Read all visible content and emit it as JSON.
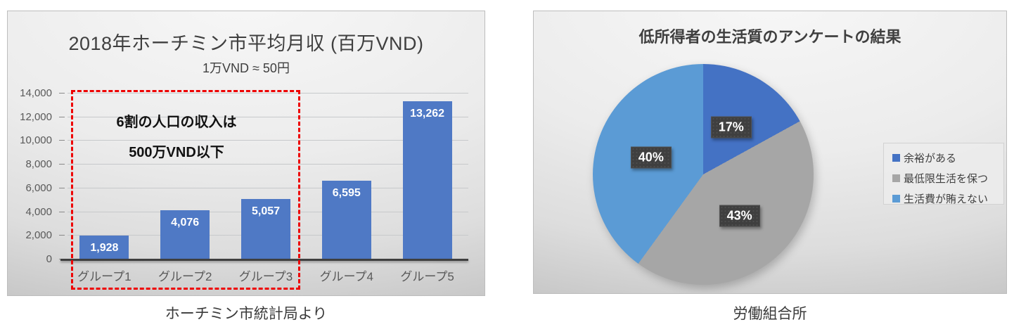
{
  "page": {
    "background": "#ffffff"
  },
  "chart_data": [
    {
      "type": "bar",
      "title": "2018年ホーチミン市平均月収 (百万VND)",
      "subtitle": "1万VND ≈ 50円",
      "categories": [
        "グループ1",
        "グループ2",
        "グループ3",
        "グループ4",
        "グループ5"
      ],
      "values": [
        1928,
        4076,
        5057,
        6595,
        13262
      ],
      "value_labels": [
        "1,928",
        "4,076",
        "5,057",
        "6,595",
        "13,262"
      ],
      "ylim": [
        0,
        14000
      ],
      "ytick_interval": 2000,
      "ytick_labels": [
        "0",
        "2,000",
        "4,000",
        "6,000",
        "8,000",
        "10,000",
        "12,000",
        "14,000"
      ],
      "grid": true,
      "legend": false,
      "bar_color": "#4f79c5",
      "annotation": {
        "line1": "6割の人口の収入は",
        "line2": "500万VND以下",
        "box_color": "#ee0000",
        "box_covers_categories": [
          "グループ1",
          "グループ2",
          "グループ3"
        ]
      },
      "caption": "ホーチミン市統計局より"
    },
    {
      "type": "pie",
      "title": "低所得者の生活質のアンケートの結果",
      "labels": [
        "余裕がある",
        "最低限生活を保つ",
        "生活費が賄えない"
      ],
      "values_percent": [
        17,
        43,
        40
      ],
      "percent_labels": [
        "17%",
        "43%",
        "40%"
      ],
      "colors": [
        "#4472c4",
        "#a6a6a6",
        "#5b9bd5"
      ],
      "start_angle_deg": 0,
      "direction": "clockwise",
      "legend_position": "right",
      "caption": "労働組合所"
    }
  ]
}
